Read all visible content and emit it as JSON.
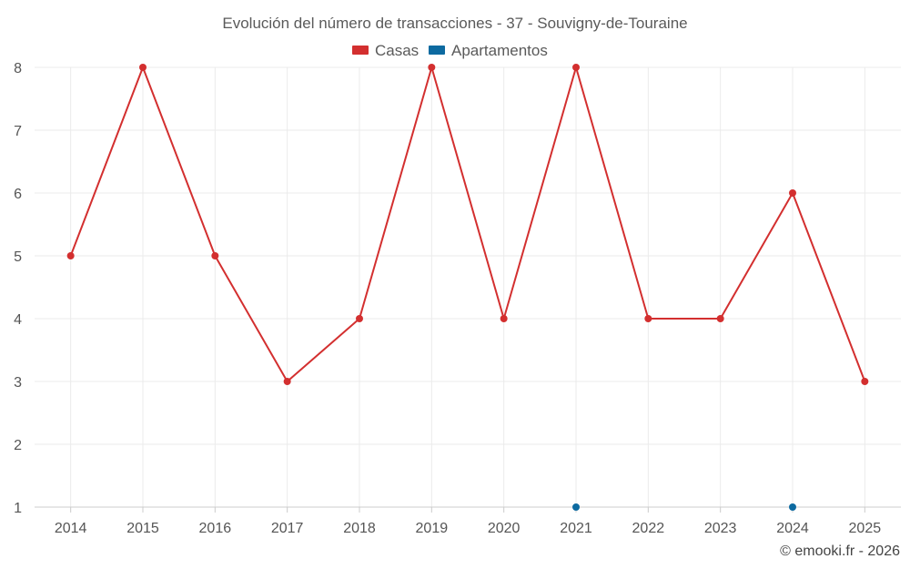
{
  "chart_data": {
    "type": "line",
    "title": "Evolución del número de transacciones - 37 - Souvigny-de-Touraine",
    "xlabel": "",
    "ylabel": "",
    "categories": [
      "2014",
      "2015",
      "2016",
      "2017",
      "2018",
      "2019",
      "2020",
      "2021",
      "2022",
      "2023",
      "2024",
      "2025"
    ],
    "ylim": [
      1,
      8
    ],
    "yticks": [
      1,
      2,
      3,
      4,
      5,
      6,
      7,
      8
    ],
    "grid": true,
    "legend_position": "top-center",
    "series": [
      {
        "name": "Casas",
        "color": "#d32f2f",
        "line": true,
        "values": [
          5,
          8,
          5,
          3,
          4,
          8,
          4,
          8,
          4,
          4,
          6,
          3
        ]
      },
      {
        "name": "Apartamentos",
        "color": "#0d6aa0",
        "line": false,
        "values": [
          null,
          null,
          null,
          null,
          null,
          null,
          null,
          1,
          null,
          null,
          1,
          null
        ]
      }
    ]
  },
  "credit": "© emooki.fr - 2026"
}
